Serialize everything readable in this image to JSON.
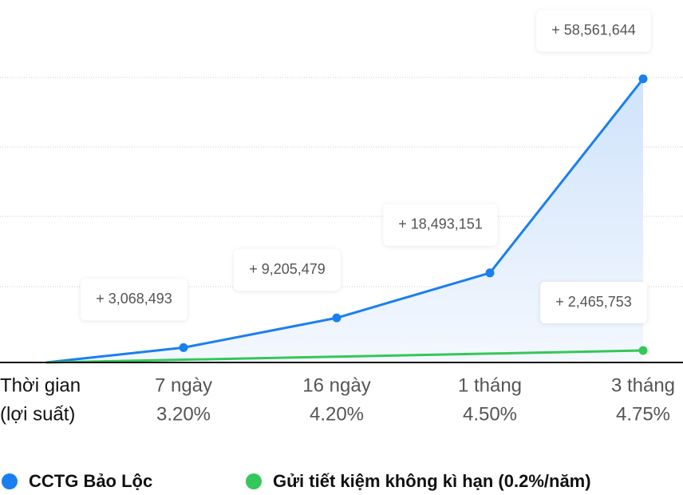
{
  "chart_data": {
    "type": "line",
    "x_label": "Thời gian",
    "x_sublabel": "(lợi suất)",
    "categories": [
      null,
      "7 ngày",
      "16 ngày",
      "1 tháng",
      "3 tháng"
    ],
    "rates": [
      null,
      "3.20%",
      "4.20%",
      "4.50%",
      "4.75%"
    ],
    "ylim": [
      0,
      60000000
    ],
    "series": [
      {
        "name": "CCTG Bảo Lộc",
        "color": "#1a7ff0",
        "values": [
          0,
          3068493,
          9205479,
          18493151,
          58561644
        ],
        "value_labels": [
          null,
          "+ 3,068,493",
          "+ 9,205,479",
          "+ 18,493,151",
          "+ 58,561,644"
        ]
      },
      {
        "name": "Gửi tiết kiệm không kì hạn (0.2%/năm)",
        "color": "#34c759",
        "values": [
          0,
          567000,
          1200000,
          1830000,
          2465753
        ],
        "value_labels": [
          null,
          null,
          null,
          null,
          "+ 2,465,753"
        ]
      }
    ]
  }
}
